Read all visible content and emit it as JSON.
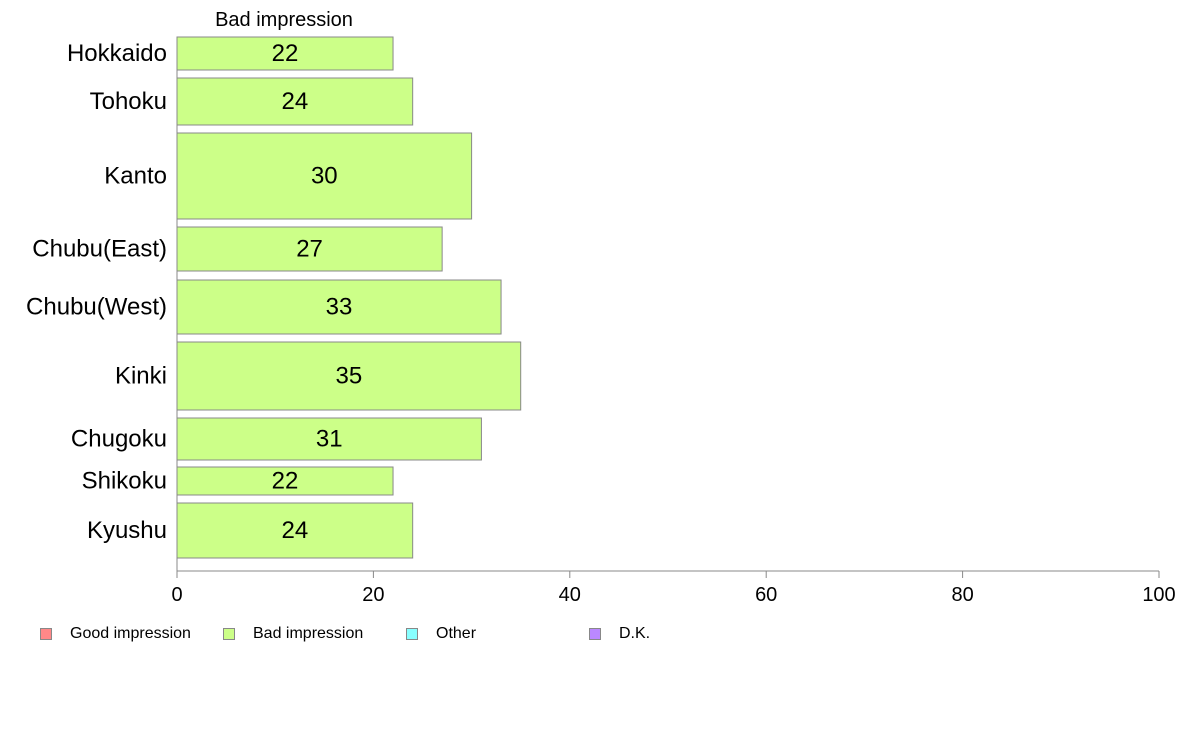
{
  "chart_data": {
    "type": "bar",
    "orientation": "horizontal",
    "title": "Bad impression",
    "categories": [
      "Hokkaido",
      "Tohoku",
      "Kanto",
      "Chubu(East)",
      "Chubu(West)",
      "Kinki",
      "Chugoku",
      "Shikoku",
      "Kyushu"
    ],
    "series": [
      {
        "name": "Bad impression",
        "values": [
          22,
          24,
          30,
          27,
          33,
          35,
          31,
          22,
          24
        ]
      }
    ],
    "bar_fill": "#ccff88",
    "bar_stroke": "#888888",
    "xlim": [
      0,
      100
    ],
    "xticks": [
      0,
      20,
      40,
      60,
      80,
      100
    ],
    "xlabel": "",
    "ylabel": "",
    "grid": false,
    "legend": {
      "placement": "bottom",
      "items": [
        {
          "name": "Good impression",
          "color": "#ff8888"
        },
        {
          "name": "Bad impression",
          "color": "#ccff88"
        },
        {
          "name": "Other",
          "color": "#88ffff"
        },
        {
          "name": "D.K.",
          "color": "#bb88ff"
        }
      ]
    }
  }
}
